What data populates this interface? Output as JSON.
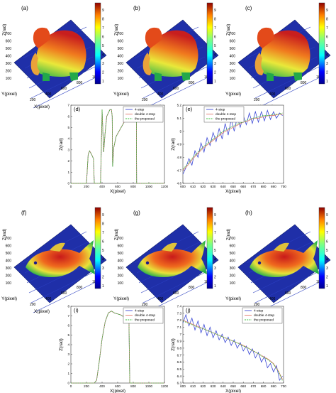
{
  "figure": {
    "background": "#ffffff",
    "surface_panels": [
      {
        "label": "(a)",
        "object": "elephant",
        "zlabel": "Z(rad)",
        "xlabel": "X(pixel)",
        "ylabel": "Y(pixel)",
        "yticks": [
          "100",
          "200",
          "300",
          "400",
          "500",
          "600",
          "700"
        ],
        "xticks": [
          "200",
          "400",
          "600",
          "800",
          "1000"
        ],
        "colorbar_ticks": [
          "1",
          "2",
          "3",
          "4",
          "5",
          "6",
          "7",
          "8",
          "9"
        ]
      },
      {
        "label": "(b)",
        "object": "elephant",
        "zlabel": "Z(rad)",
        "xlabel": "X(pixel)",
        "ylabel": "Y(pixel)",
        "yticks": [
          "100",
          "200",
          "300",
          "400",
          "500",
          "600",
          "700"
        ],
        "xticks": [
          "200",
          "400",
          "600",
          "800",
          "1000"
        ],
        "colorbar_ticks": [
          "1",
          "2",
          "3",
          "4",
          "5",
          "6",
          "7",
          "8",
          "9"
        ]
      },
      {
        "label": "(c)",
        "object": "elephant",
        "zlabel": "Z(rad)",
        "xlabel": "X(pixel)",
        "ylabel": "Y(pixel)",
        "yticks": [
          "100",
          "200",
          "300",
          "400",
          "500",
          "600",
          "700"
        ],
        "xticks": [
          "200",
          "400",
          "600",
          "800",
          "1000"
        ],
        "colorbar_ticks": [
          "1",
          "2",
          "3",
          "4",
          "5",
          "6",
          "7",
          "8",
          "9"
        ]
      },
      {
        "label": "(f)",
        "object": "fish",
        "zlabel": "Z(rad)",
        "xlabel": "X(pixel)",
        "ylabel": "Y(pixel)",
        "yticks": [
          "100",
          "200",
          "300",
          "400",
          "500",
          "600",
          "700"
        ],
        "xticks": [
          "200",
          "400",
          "600",
          "800",
          "1000"
        ],
        "colorbar_ticks": [
          "1",
          "2",
          "3",
          "4",
          "5",
          "6",
          "7",
          "8",
          "9"
        ]
      },
      {
        "label": "(g)",
        "object": "fish",
        "zlabel": "Z(rad)",
        "xlabel": "X(pixel)",
        "ylabel": "Y(pixel)",
        "yticks": [
          "100",
          "200",
          "300",
          "400",
          "500",
          "600",
          "700"
        ],
        "xticks": [
          "200",
          "400",
          "600",
          "800",
          "1000"
        ],
        "colorbar_ticks": [
          "1",
          "2",
          "3",
          "4",
          "5",
          "6",
          "7",
          "8",
          "9"
        ]
      },
      {
        "label": "(h)",
        "object": "fish",
        "zlabel": "Z(rad)",
        "xlabel": "X(pixel)",
        "ylabel": "Y(pixel)",
        "yticks": [
          "100",
          "200",
          "300",
          "400",
          "500",
          "600",
          "700"
        ],
        "xticks": [
          "200",
          "400",
          "600",
          "800",
          "1000"
        ],
        "colorbar_ticks": [
          "1",
          "2",
          "3",
          "4",
          "5",
          "6",
          "7",
          "8",
          "9"
        ]
      }
    ],
    "legend_items": [
      "4-step",
      "double 4-step",
      "the proposed"
    ],
    "colors": {
      "four_step": "#3b48d6",
      "double_four_step": "#e0786a",
      "proposed": "#3fc03f",
      "surface_background": "#1f2fa8",
      "axis": "#333333"
    }
  },
  "chart_data": [
    {
      "id": "d",
      "label": "(d)",
      "type": "line",
      "xlabel": "X(pixel)",
      "ylabel": "Z(rad)",
      "xlim": [
        0,
        1200
      ],
      "ylim": [
        0,
        7
      ],
      "xticks": [
        0,
        200,
        400,
        600,
        800,
        1000,
        1200
      ],
      "yticks": [
        0,
        1,
        2,
        3,
        4,
        5,
        6,
        7
      ],
      "legend": "top-right",
      "series": [
        {
          "name": "4-step",
          "x": [
            0,
            150,
            200,
            222,
            240,
            265,
            290,
            300,
            350,
            380,
            398,
            400,
            420,
            440,
            460,
            500,
            520,
            530,
            535,
            550,
            580,
            620,
            700,
            760,
            838,
            840,
            842,
            843,
            845,
            1200
          ],
          "y": [
            0,
            0,
            0,
            2.6,
            2.9,
            2.6,
            2.2,
            0,
            0,
            0,
            5.6,
            6.6,
            2.8,
            4.6,
            6.0,
            6.6,
            6.6,
            6.0,
            1.5,
            3.2,
            4.2,
            4.7,
            5.7,
            6.0,
            6.0,
            5.9,
            2.0,
            0,
            0,
            0
          ]
        },
        {
          "name": "double 4-step",
          "x": [
            0,
            150,
            200,
            222,
            240,
            265,
            290,
            300,
            350,
            380,
            398,
            400,
            420,
            440,
            460,
            500,
            520,
            530,
            535,
            550,
            580,
            620,
            700,
            760,
            838,
            840,
            842,
            843,
            845,
            1200
          ],
          "y": [
            0,
            0,
            0,
            2.6,
            2.9,
            2.6,
            2.2,
            0,
            0,
            0,
            5.6,
            6.6,
            2.8,
            4.6,
            6.0,
            6.6,
            6.6,
            6.0,
            1.5,
            3.2,
            4.2,
            4.7,
            5.7,
            6.0,
            6.0,
            5.9,
            2.0,
            0,
            0,
            0
          ]
        },
        {
          "name": "the proposed",
          "x": [
            0,
            150,
            200,
            222,
            240,
            265,
            290,
            300,
            350,
            380,
            398,
            400,
            420,
            440,
            460,
            500,
            520,
            530,
            535,
            550,
            580,
            620,
            700,
            760,
            838,
            840,
            842,
            843,
            845,
            1200
          ],
          "y": [
            0,
            0,
            0,
            2.6,
            2.9,
            2.6,
            2.2,
            0,
            0,
            0,
            5.6,
            6.6,
            2.8,
            4.6,
            6.0,
            6.6,
            6.6,
            6.0,
            1.5,
            3.2,
            4.2,
            4.7,
            5.7,
            6.0,
            6.0,
            5.9,
            2.0,
            0,
            0,
            0
          ]
        }
      ]
    },
    {
      "id": "e",
      "label": "(e)",
      "type": "line",
      "xlabel": "X(pixel)",
      "ylabel": "Z(rad)",
      "xlim": [
        600,
        700
      ],
      "ylim": [
        4.6,
        5.2
      ],
      "xticks": [
        600,
        610,
        620,
        630,
        640,
        650,
        660,
        670,
        680,
        690,
        700
      ],
      "yticks": [
        4.6,
        4.7,
        4.8,
        4.9,
        5.0,
        5.1,
        5.2
      ],
      "legend": "top-left",
      "series": [
        {
          "name": "4-step",
          "x": [
            600,
            603,
            606,
            609,
            612,
            615,
            618,
            621,
            624,
            627,
            630,
            633,
            636,
            639,
            642,
            645,
            648,
            651,
            654,
            657,
            660,
            663,
            666,
            669,
            672,
            675,
            678,
            681,
            684,
            687,
            690,
            693,
            696,
            699
          ],
          "y": [
            4.67,
            4.72,
            4.79,
            4.74,
            4.85,
            4.8,
            4.91,
            4.84,
            4.95,
            4.89,
            4.99,
            4.92,
            5.02,
            4.94,
            5.06,
            4.97,
            5.09,
            5.0,
            5.11,
            5.03,
            5.12,
            5.05,
            5.14,
            5.06,
            5.15,
            5.07,
            5.15,
            5.08,
            5.16,
            5.09,
            5.15,
            5.1,
            5.14,
            5.12
          ]
        },
        {
          "name": "double 4-step",
          "x": [
            600,
            605,
            610,
            615,
            620,
            625,
            630,
            635,
            640,
            645,
            650,
            655,
            660,
            665,
            670,
            675,
            680,
            685,
            690,
            695,
            699
          ],
          "y": [
            4.7,
            4.74,
            4.79,
            4.83,
            4.87,
            4.9,
            4.93,
            4.96,
            4.99,
            5.01,
            5.03,
            5.05,
            5.07,
            5.08,
            5.1,
            5.1,
            5.11,
            5.12,
            5.12,
            5.13,
            5.13
          ]
        },
        {
          "name": "the proposed",
          "x": [
            600,
            605,
            610,
            615,
            620,
            625,
            630,
            635,
            640,
            645,
            650,
            655,
            660,
            665,
            670,
            675,
            680,
            685,
            690,
            695,
            699
          ],
          "y": [
            4.71,
            4.75,
            4.8,
            4.84,
            4.88,
            4.91,
            4.94,
            4.97,
            5.0,
            5.02,
            5.04,
            5.06,
            5.07,
            5.09,
            5.1,
            5.11,
            5.12,
            5.12,
            5.13,
            5.13,
            5.14
          ]
        }
      ]
    },
    {
      "id": "i",
      "label": "(i)",
      "type": "line",
      "xlabel": "X(pixel)",
      "ylabel": "Z(rad)",
      "xlim": [
        0,
        1200
      ],
      "ylim": [
        0,
        8
      ],
      "xticks": [
        0,
        200,
        400,
        600,
        800,
        1000,
        1200
      ],
      "yticks": [
        0,
        1,
        2,
        3,
        4,
        5,
        6,
        7,
        8
      ],
      "legend": "top-right",
      "series": [
        {
          "name": "4-step",
          "x": [
            0,
            200,
            300,
            330,
            360,
            400,
            440,
            480,
            520,
            560,
            600,
            640,
            680,
            720,
            745,
            750,
            755,
            1200
          ],
          "y": [
            0,
            0,
            0,
            0.3,
            2.0,
            4.6,
            6.4,
            7.3,
            7.5,
            7.3,
            7.2,
            7.1,
            6.9,
            6.6,
            6.3,
            3.0,
            0,
            0
          ]
        },
        {
          "name": "double 4-step",
          "x": [
            0,
            200,
            300,
            330,
            360,
            400,
            440,
            480,
            520,
            560,
            600,
            640,
            680,
            720,
            745,
            750,
            755,
            1200
          ],
          "y": [
            0,
            0,
            0,
            0.3,
            2.0,
            4.6,
            6.4,
            7.3,
            7.5,
            7.3,
            7.2,
            7.1,
            6.9,
            6.6,
            6.3,
            3.0,
            0,
            0
          ]
        },
        {
          "name": "the proposed",
          "x": [
            0,
            200,
            300,
            330,
            360,
            400,
            440,
            480,
            520,
            560,
            600,
            640,
            680,
            720,
            745,
            750,
            755,
            1200
          ],
          "y": [
            0,
            0,
            0,
            0.3,
            2.0,
            4.6,
            6.4,
            7.3,
            7.5,
            7.3,
            7.2,
            7.1,
            6.9,
            6.6,
            6.3,
            3.0,
            0,
            0
          ]
        }
      ]
    },
    {
      "id": "j",
      "label": "(j)",
      "type": "line",
      "xlabel": "X(pixel)",
      "ylabel": "Z(rad)",
      "xlim": [
        600,
        700
      ],
      "ylim": [
        6.3,
        7.4
      ],
      "xticks": [
        600,
        610,
        620,
        630,
        640,
        650,
        660,
        670,
        680,
        690,
        700
      ],
      "yticks": [
        6.3,
        6.4,
        6.5,
        6.6,
        6.7,
        6.8,
        6.9,
        7.0,
        7.1,
        7.2,
        7.3,
        7.4
      ],
      "legend": "top-right",
      "series": [
        {
          "name": "4-step",
          "x": [
            600,
            603,
            606,
            609,
            612,
            615,
            618,
            621,
            624,
            627,
            630,
            633,
            636,
            639,
            642,
            645,
            648,
            651,
            654,
            657,
            660,
            663,
            666,
            669,
            672,
            675,
            678,
            681,
            684,
            687,
            690,
            693,
            696,
            699
          ],
          "y": [
            7.16,
            7.28,
            7.12,
            7.23,
            7.06,
            7.19,
            7.02,
            7.14,
            6.98,
            7.1,
            6.95,
            7.05,
            6.92,
            7.0,
            6.88,
            6.96,
            6.84,
            6.92,
            6.8,
            6.88,
            6.76,
            6.83,
            6.71,
            6.79,
            6.66,
            6.74,
            6.6,
            6.68,
            6.52,
            6.58,
            6.46,
            6.55,
            6.34,
            6.4
          ]
        },
        {
          "name": "double 4-step",
          "x": [
            600,
            605,
            610,
            615,
            620,
            625,
            630,
            635,
            640,
            645,
            650,
            655,
            660,
            665,
            670,
            675,
            680,
            685,
            690,
            695,
            699
          ],
          "y": [
            7.2,
            7.17,
            7.14,
            7.11,
            7.08,
            7.05,
            7.02,
            6.99,
            6.96,
            6.93,
            6.9,
            6.87,
            6.84,
            6.8,
            6.76,
            6.72,
            6.68,
            6.64,
            6.58,
            6.47,
            6.35
          ]
        },
        {
          "name": "the proposed",
          "x": [
            600,
            605,
            610,
            615,
            620,
            625,
            630,
            635,
            640,
            645,
            650,
            655,
            660,
            665,
            670,
            675,
            680,
            685,
            690,
            695,
            699
          ],
          "y": [
            7.19,
            7.16,
            7.13,
            7.1,
            7.08,
            7.05,
            7.02,
            6.99,
            6.96,
            6.93,
            6.9,
            6.87,
            6.83,
            6.8,
            6.76,
            6.72,
            6.67,
            6.63,
            6.57,
            6.46,
            6.33
          ]
        }
      ]
    }
  ]
}
